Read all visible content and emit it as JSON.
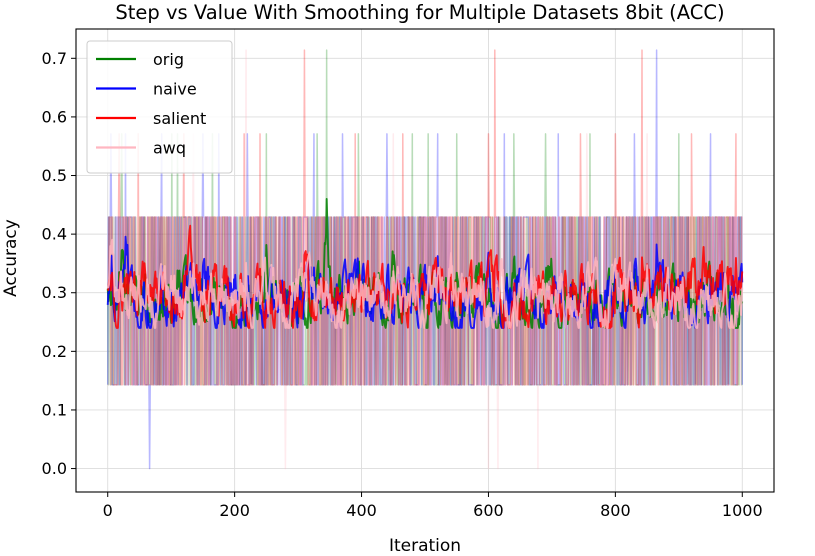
{
  "chart_data": {
    "type": "line",
    "title": "Step vs Value With Smoothing for Multiple Datasets 8bit (ACC)",
    "xlabel": "Iteration",
    "ylabel": "Accuracy",
    "xlim": [
      -50,
      1050
    ],
    "ylim": [
      -0.04,
      0.75
    ],
    "xticks": [
      0,
      200,
      400,
      600,
      800,
      1000
    ],
    "yticks": [
      0.0,
      0.1,
      0.2,
      0.3,
      0.4,
      0.5,
      0.6,
      0.7
    ],
    "grid": true,
    "legend": {
      "position": "top-left",
      "entries": [
        "orig",
        "naive",
        "salient",
        "awq"
      ]
    },
    "raw_levels": [
      0.0,
      0.143,
      0.286,
      0.429,
      0.571,
      0.714
    ],
    "series": [
      {
        "name": "orig",
        "color": "#008000",
        "raw_spikes": [
          {
            "x": 22,
            "y": 0.571
          },
          {
            "x": 101,
            "y": 0.571
          },
          {
            "x": 110,
            "y": 0.571
          },
          {
            "x": 165,
            "y": 0.571
          },
          {
            "x": 250,
            "y": 0.571
          },
          {
            "x": 330,
            "y": 0.571
          },
          {
            "x": 345,
            "y": 0.714
          },
          {
            "x": 395,
            "y": 0.571
          },
          {
            "x": 480,
            "y": 0.571
          },
          {
            "x": 505,
            "y": 0.571
          },
          {
            "x": 550,
            "y": 0.571
          },
          {
            "x": 640,
            "y": 0.571
          },
          {
            "x": 690,
            "y": 0.571
          },
          {
            "x": 760,
            "y": 0.571
          },
          {
            "x": 900,
            "y": 0.571
          }
        ],
        "smoothed_peaks": [
          {
            "x": 20,
            "y": 0.38
          },
          {
            "x": 250,
            "y": 0.4
          },
          {
            "x": 345,
            "y": 0.44
          },
          {
            "x": 450,
            "y": 0.37
          },
          {
            "x": 700,
            "y": 0.36
          }
        ],
        "smoothed_mean": 0.31
      },
      {
        "name": "naive",
        "color": "#0000ff",
        "raw_spikes": [
          {
            "x": 5,
            "y": 0.571
          },
          {
            "x": 28,
            "y": 0.571
          },
          {
            "x": 66,
            "y": 0.0
          },
          {
            "x": 85,
            "y": 0.571
          },
          {
            "x": 150,
            "y": 0.571
          },
          {
            "x": 175,
            "y": 0.571
          },
          {
            "x": 220,
            "y": 0.571
          },
          {
            "x": 325,
            "y": 0.571
          },
          {
            "x": 370,
            "y": 0.571
          },
          {
            "x": 440,
            "y": 0.571
          },
          {
            "x": 520,
            "y": 0.571
          },
          {
            "x": 625,
            "y": 0.571
          },
          {
            "x": 710,
            "y": 0.571
          },
          {
            "x": 830,
            "y": 0.571
          },
          {
            "x": 865,
            "y": 0.714
          },
          {
            "x": 950,
            "y": 0.571
          }
        ],
        "smoothed_peaks": [
          {
            "x": 30,
            "y": 0.4
          },
          {
            "x": 200,
            "y": 0.35
          },
          {
            "x": 400,
            "y": 0.36
          },
          {
            "x": 600,
            "y": 0.34
          },
          {
            "x": 900,
            "y": 0.35
          }
        ],
        "smoothed_mean": 0.3
      },
      {
        "name": "salient",
        "color": "#ff0000",
        "raw_spikes": [
          {
            "x": 18,
            "y": 0.571
          },
          {
            "x": 48,
            "y": 0.571
          },
          {
            "x": 120,
            "y": 0.571
          },
          {
            "x": 215,
            "y": 0.571
          },
          {
            "x": 240,
            "y": 0.571
          },
          {
            "x": 310,
            "y": 0.714
          },
          {
            "x": 390,
            "y": 0.571
          },
          {
            "x": 465,
            "y": 0.571
          },
          {
            "x": 600,
            "y": 0.571
          },
          {
            "x": 610,
            "y": 0.714
          },
          {
            "x": 745,
            "y": 0.571
          },
          {
            "x": 800,
            "y": 0.571
          },
          {
            "x": 842,
            "y": 0.714
          },
          {
            "x": 920,
            "y": 0.571
          },
          {
            "x": 990,
            "y": 0.571
          }
        ],
        "smoothed_peaks": [
          {
            "x": 60,
            "y": 0.37
          },
          {
            "x": 130,
            "y": 0.37
          },
          {
            "x": 210,
            "y": 0.36
          },
          {
            "x": 490,
            "y": 0.37
          },
          {
            "x": 940,
            "y": 0.36
          }
        ],
        "smoothed_mean": 0.31
      },
      {
        "name": "awq",
        "color": "#ffb6c1",
        "raw_spikes": [
          {
            "x": 135,
            "y": 0.571
          },
          {
            "x": 218,
            "y": 0.714
          },
          {
            "x": 280,
            "y": 0.0
          },
          {
            "x": 450,
            "y": 0.571
          },
          {
            "x": 600,
            "y": 0.0
          },
          {
            "x": 615,
            "y": 0.0
          },
          {
            "x": 678,
            "y": 0.0
          },
          {
            "x": 755,
            "y": 0.571
          },
          {
            "x": 850,
            "y": 0.571
          }
        ],
        "smoothed_peaks": [
          {
            "x": 5,
            "y": 0.42
          },
          {
            "x": 60,
            "y": 0.36
          },
          {
            "x": 540,
            "y": 0.37
          },
          {
            "x": 620,
            "y": 0.38
          },
          {
            "x": 880,
            "y": 0.35
          }
        ],
        "smoothed_mean": 0.31
      }
    ]
  }
}
